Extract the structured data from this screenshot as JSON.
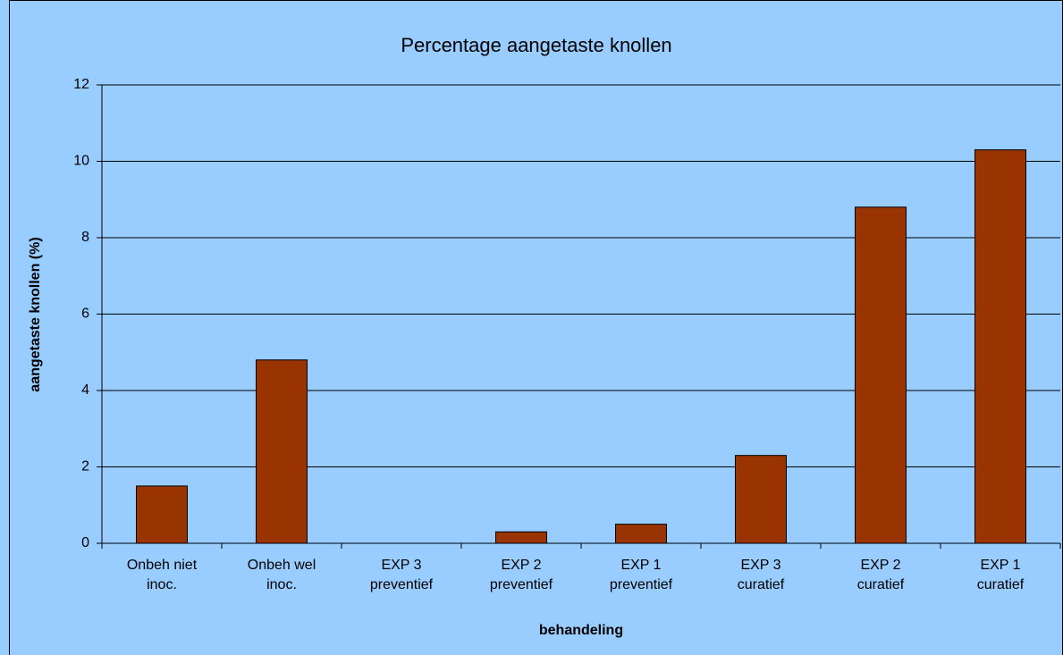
{
  "chart_data": {
    "type": "bar",
    "title": "Percentage aangetaste knollen",
    "x_label": "behandeling",
    "y_label": "aangetaste knollen (%)",
    "categories": [
      "Onbeh niet inoc.",
      "Onbeh wel inoc.",
      "EXP 3 preventief",
      "EXP 2 preventief",
      "EXP 1 preventief",
      "EXP 3 curatief",
      "EXP 2 curatief",
      "EXP 1 curatief"
    ],
    "values": [
      1.5,
      4.8,
      0,
      0.3,
      0.5,
      2.3,
      8.8,
      10.3
    ],
    "color": "#993300",
    "ylim": [
      0,
      12
    ],
    "yticks": [
      0,
      2,
      4,
      6,
      8,
      10,
      12
    ],
    "grid": true
  }
}
